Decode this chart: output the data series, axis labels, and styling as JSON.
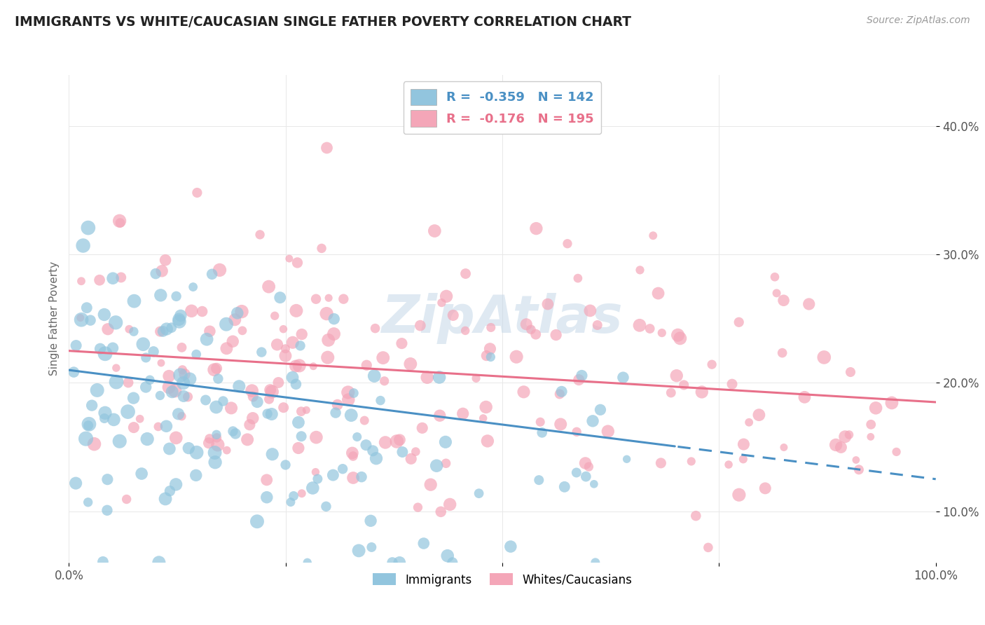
{
  "title": "IMMIGRANTS VS WHITE/CAUCASIAN SINGLE FATHER POVERTY CORRELATION CHART",
  "source": "Source: ZipAtlas.com",
  "ylabel": "Single Father Poverty",
  "yticks": [
    0.1,
    0.2,
    0.3,
    0.4
  ],
  "ytick_labels": [
    "10.0%",
    "20.0%",
    "30.0%",
    "40.0%"
  ],
  "xlim": [
    0.0,
    1.0
  ],
  "ylim": [
    0.06,
    0.44
  ],
  "immigrant_color": "#92c5de",
  "white_color": "#f4a6b8",
  "immigrant_line_color": "#4a90c4",
  "white_line_color": "#e8708a",
  "immigrant_R": -0.359,
  "immigrant_N": 142,
  "white_R": -0.176,
  "white_N": 195,
  "background_color": "#ffffff",
  "grid_color": "#e8e8e8",
  "watermark_color": "#c5d8e8",
  "legend_imm_label": "R =  -0.359   N = 142",
  "legend_wh_label": "R =  -0.176   N = 195",
  "bottom_legend_imm": "Immigrants",
  "bottom_legend_wh": "Whites/Caucasians"
}
